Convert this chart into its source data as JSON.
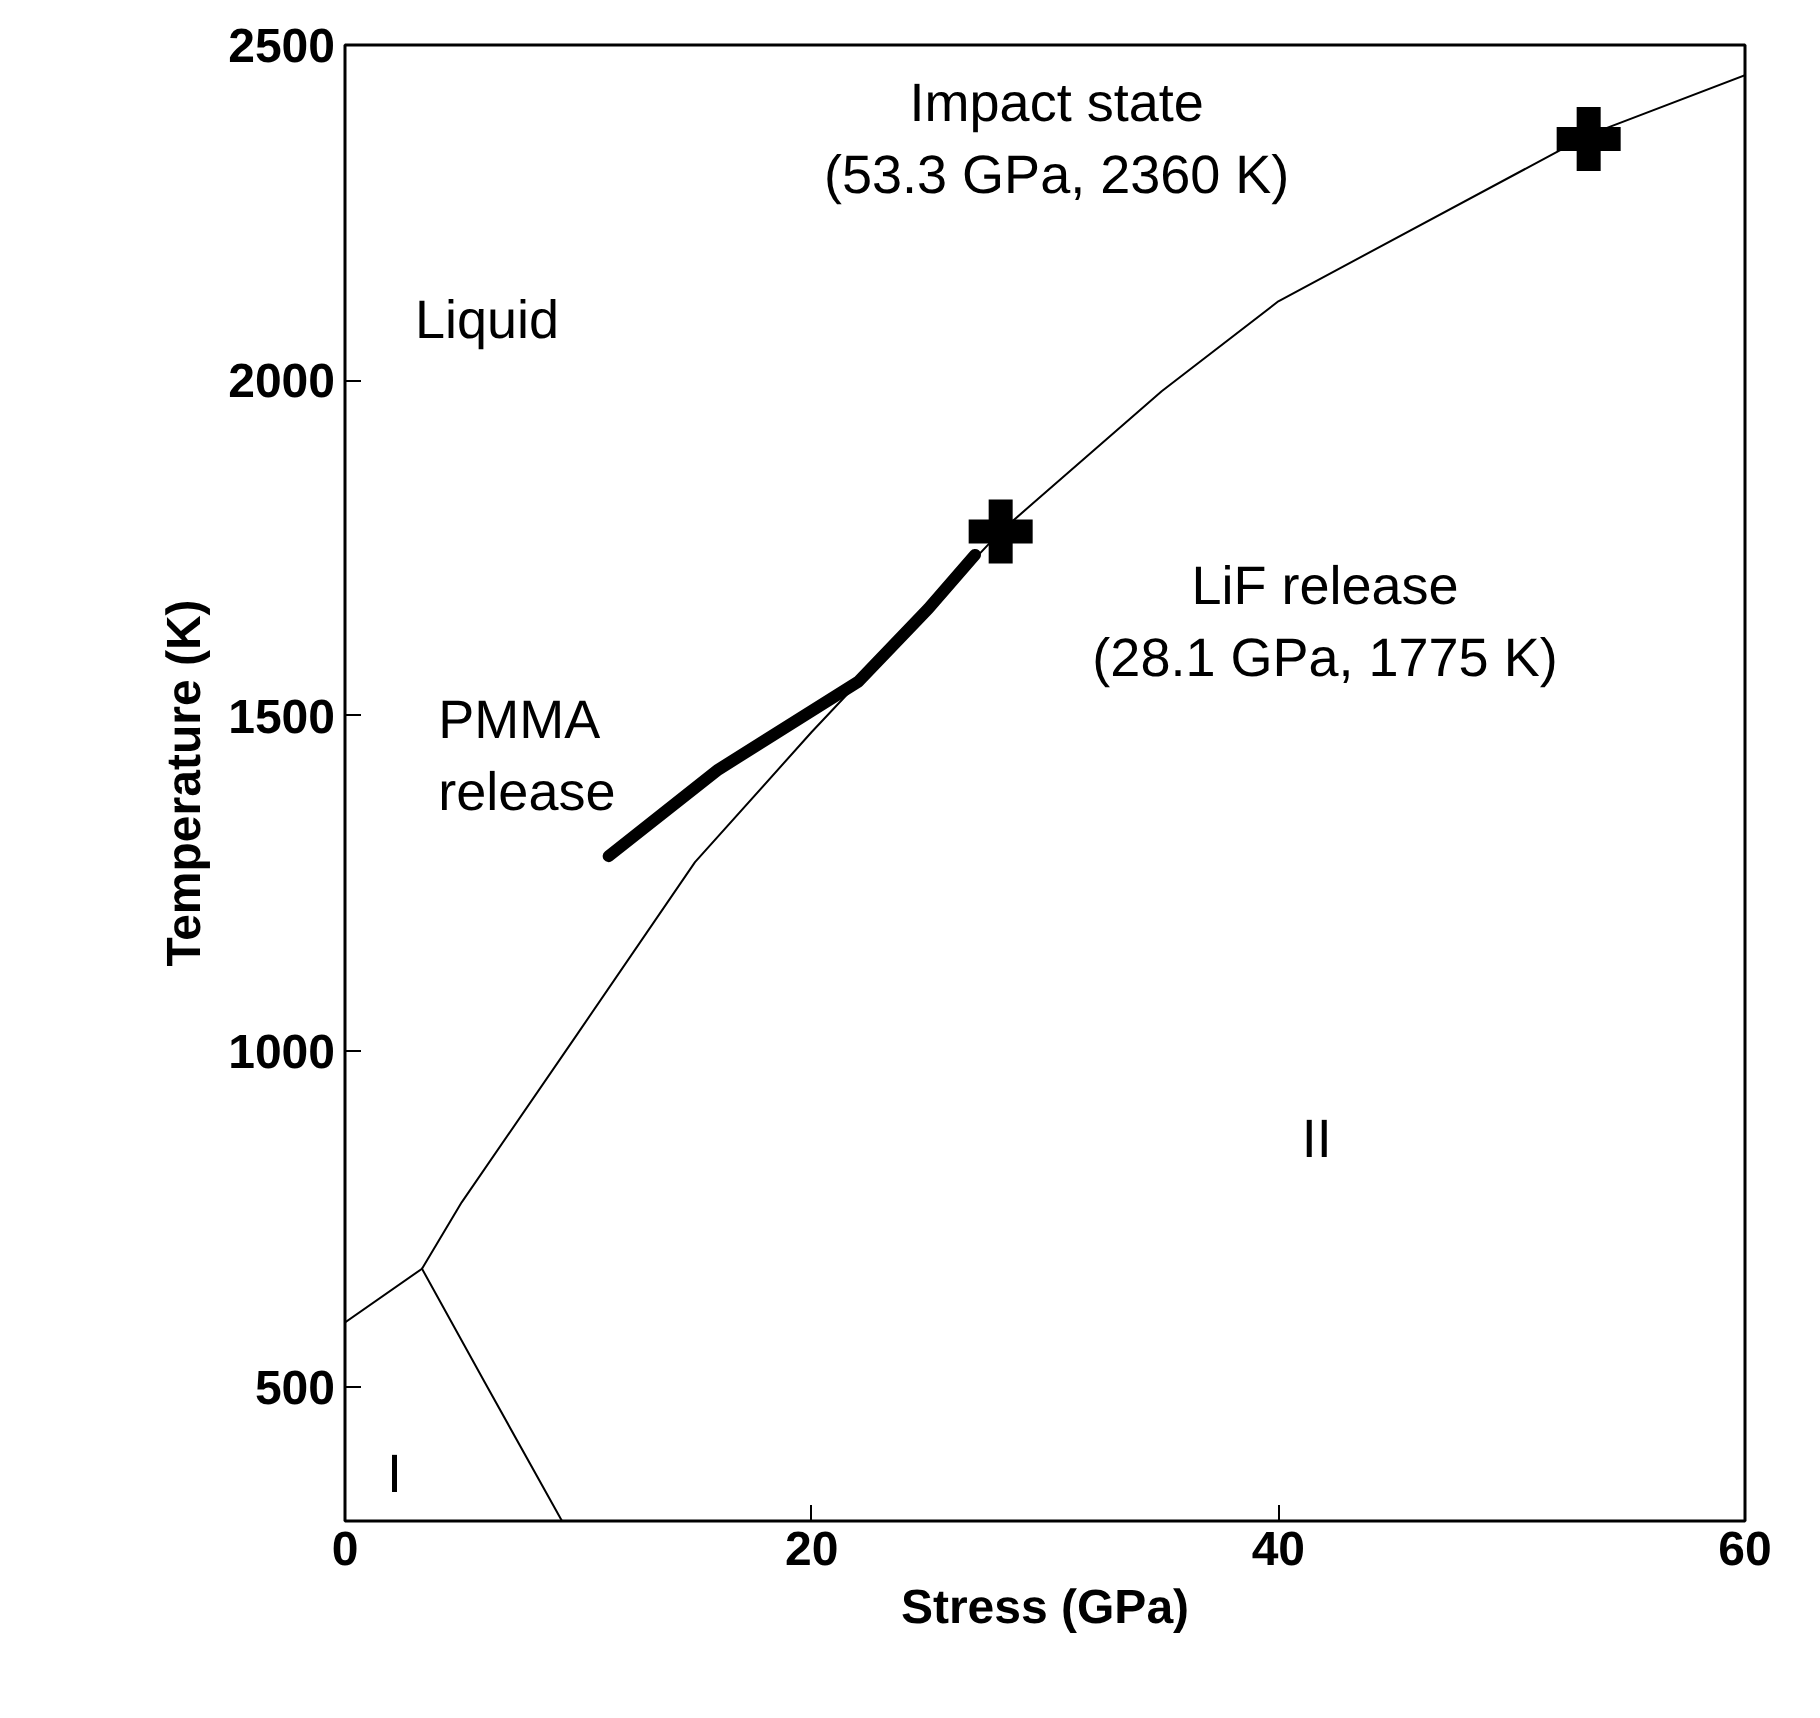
{
  "chart_data": {
    "type": "line",
    "xlabel": "Stress (GPa)",
    "ylabel": "Temperature (K)",
    "xlim": [
      0,
      60
    ],
    "ylim": [
      300,
      2500
    ],
    "xticks": [
      0,
      20,
      40,
      60
    ],
    "yticks": [
      500,
      1000,
      1500,
      2000,
      2500
    ],
    "grid": false,
    "series": [
      {
        "color": "#000000",
        "x": [
          0,
          3.3,
          5,
          10,
          15,
          20,
          28.1,
          35,
          40,
          53.3,
          60
        ],
        "values": [
          596,
          676,
          775,
          1028,
          1282,
          1476,
          1775,
          1984,
          2118,
          2366,
          2455
        ]
      },
      {
        "color": "#000000",
        "x": [
          3.3,
          6,
          9.3
        ],
        "values": [
          676,
          506,
          300
        ]
      },
      {
        "color": "#000000",
        "x": [
          11.3,
          16,
          22,
          25,
          27
        ],
        "values": [
          1291,
          1420,
          1551,
          1660,
          1740
        ]
      },
      {
        "type": "scatter",
        "marker": "cross",
        "color": "#000000",
        "x": [
          28.1,
          53.3
        ],
        "values": [
          1775,
          2360
        ]
      }
    ],
    "annotations": [
      "Impact state\n(53.3 GPa, 2360 K)",
      "LiF release\n(28.1 GPa, 1775 K)",
      "Liquid",
      "PMMA\nrelease",
      "I",
      "II"
    ]
  }
}
